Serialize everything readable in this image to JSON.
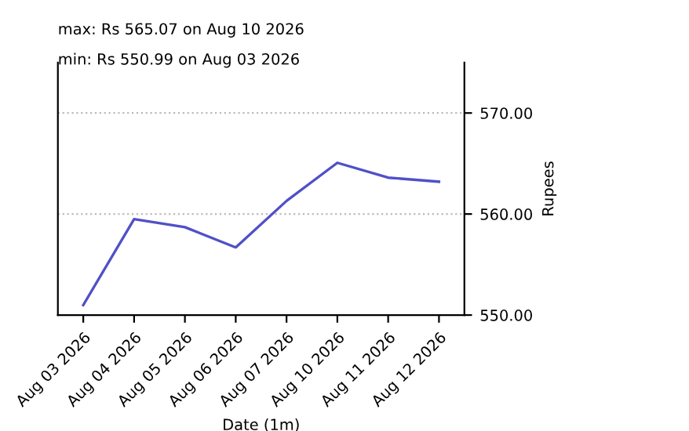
{
  "chart_data": {
    "type": "line",
    "xlabel": "Date (1m)",
    "ylabel": "Rupees",
    "annotations": [
      "max: Rs 565.07 on Aug 10 2026",
      "min: Rs 550.99 on Aug 03 2026"
    ],
    "categories": [
      "Aug 03 2026",
      "Aug 04 2026",
      "Aug 05 2026",
      "Aug 06 2026",
      "Aug 07 2026",
      "Aug 10 2026",
      "Aug 11 2026",
      "Aug 12 2026"
    ],
    "series": [
      {
        "color": "#5050c8",
        "values": [
          550.99,
          559.5,
          558.7,
          556.7,
          561.3,
          565.07,
          563.6,
          563.2
        ]
      }
    ],
    "ylim": [
      550,
      575
    ],
    "yticks": [
      {
        "value": 550,
        "label": "550.00"
      },
      {
        "value": 560,
        "label": "560.00"
      },
      {
        "value": 570,
        "label": "570.00"
      }
    ],
    "grid": "y",
    "marker": "none",
    "line_style": "solid"
  }
}
